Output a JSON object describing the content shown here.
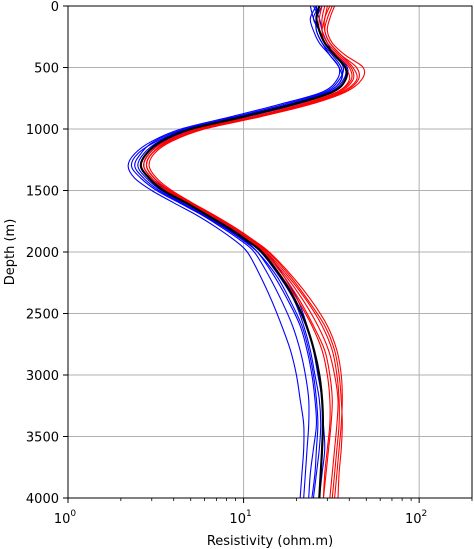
{
  "chart_data": {
    "type": "line",
    "xlabel": "Resistivity (ohm.m)",
    "ylabel": "Depth (m)",
    "x_scale": "log",
    "xlim": [
      1,
      200
    ],
    "ylim": [
      4000,
      0
    ],
    "y_inverted": true,
    "grid": true,
    "x_ticks": [
      {
        "value": 1,
        "base": "10",
        "exp": "0"
      },
      {
        "value": 10,
        "base": "10",
        "exp": "1"
      },
      {
        "value": 100,
        "base": "10",
        "exp": "2"
      }
    ],
    "y_ticks": [
      0,
      500,
      1000,
      1500,
      2000,
      2500,
      3000,
      3500,
      4000
    ],
    "colors": {
      "blue": "#0000ff",
      "red": "#ff0000",
      "black": "#000000",
      "grid": "#b0b0b0"
    },
    "depths": [
      0,
      100,
      200,
      300,
      400,
      500,
      600,
      700,
      800,
      900,
      1000,
      1100,
      1200,
      1300,
      1400,
      1500,
      1600,
      1700,
      1800,
      1900,
      2000,
      2200,
      2400,
      2600,
      2800,
      3000,
      3200,
      3400,
      3600,
      3800,
      4000
    ],
    "series": [
      {
        "color": "blue",
        "values": [
          26,
          24,
          25,
          27,
          31,
          35,
          34,
          28,
          16,
          8.5,
          4.4,
          3.0,
          2.4,
          2.2,
          2.4,
          3.0,
          4.0,
          5.4,
          7.0,
          8.8,
          10.5,
          12.5,
          14.5,
          16.5,
          18.5,
          20.0,
          21.0,
          22.0,
          22.0,
          21.5,
          21.0
        ]
      },
      {
        "color": "blue",
        "values": [
          24,
          25,
          27,
          29,
          33,
          37,
          35,
          29,
          17,
          9.0,
          4.7,
          3.2,
          2.5,
          2.3,
          2.6,
          3.2,
          4.3,
          5.8,
          7.5,
          9.5,
          11.5,
          14.0,
          16.5,
          19.0,
          21.0,
          22.5,
          23.5,
          23.5,
          23.0,
          22.5,
          22.0
        ]
      },
      {
        "color": "blue",
        "values": [
          28,
          26,
          26,
          28,
          32,
          36,
          36,
          30,
          18,
          9.5,
          4.8,
          3.3,
          2.7,
          2.5,
          2.8,
          3.4,
          4.5,
          6.0,
          7.8,
          10.0,
          12.0,
          15.0,
          18.0,
          21.0,
          23.0,
          24.5,
          25.5,
          26.0,
          25.0,
          24.0,
          23.5
        ]
      },
      {
        "color": "blue",
        "values": [
          25,
          27,
          28,
          30,
          33,
          38,
          37,
          31,
          19,
          10.0,
          5.0,
          3.4,
          2.8,
          2.6,
          2.9,
          3.5,
          4.7,
          6.2,
          8.0,
          10.2,
          12.5,
          16.0,
          19.5,
          22.0,
          24.0,
          25.5,
          27.0,
          27.5,
          27.0,
          26.0,
          25.0
        ]
      },
      {
        "color": "blue",
        "values": [
          27,
          25,
          27,
          29,
          34,
          39,
          38,
          32,
          20,
          10.5,
          5.2,
          3.5,
          2.9,
          2.7,
          3.0,
          3.7,
          4.9,
          6.5,
          8.4,
          10.8,
          13.5,
          17.0,
          20.5,
          23.0,
          25.0,
          26.5,
          28.0,
          28.5,
          29.0,
          28.0,
          27.0
        ]
      },
      {
        "color": "blue",
        "values": [
          26,
          26,
          26,
          28,
          31,
          35,
          36,
          30,
          18,
          9.2,
          4.6,
          3.1,
          2.6,
          2.4,
          2.7,
          3.3,
          4.4,
          5.9,
          7.7,
          9.8,
          12.0,
          15.5,
          18.5,
          21.5,
          23.5,
          25.0,
          26.0,
          26.5,
          26.0,
          25.5,
          24.5
        ]
      },
      {
        "color": "red",
        "values": [
          30,
          29,
          28,
          29,
          33,
          38,
          40,
          34,
          22,
          11.5,
          5.5,
          3.6,
          2.9,
          2.7,
          3.0,
          3.6,
          4.8,
          6.3,
          8.2,
          10.5,
          13.0,
          17.0,
          21.0,
          25.0,
          29.0,
          31.0,
          32.0,
          31.5,
          30.5,
          29.5,
          28.5
        ]
      },
      {
        "color": "red",
        "values": [
          32,
          30,
          29,
          31,
          36,
          44,
          45,
          37,
          23,
          12.0,
          5.8,
          3.8,
          3.0,
          2.8,
          3.1,
          3.8,
          5.0,
          6.6,
          8.6,
          11.0,
          13.5,
          18.0,
          23.0,
          28.0,
          32.0,
          34.0,
          35.0,
          35.0,
          34.0,
          33.0,
          32.0
        ]
      },
      {
        "color": "red",
        "values": [
          29,
          28,
          28,
          30,
          35,
          41,
          42,
          35,
          22,
          11.8,
          5.6,
          3.7,
          3.0,
          2.8,
          3.1,
          3.7,
          4.9,
          6.5,
          8.5,
          10.8,
          13.2,
          17.5,
          22.0,
          26.5,
          30.5,
          33.0,
          34.5,
          34.0,
          33.0,
          32.0,
          31.0
        ]
      },
      {
        "color": "red",
        "values": [
          33,
          31,
          30,
          32,
          38,
          48,
          47,
          38,
          24,
          12.5,
          6.0,
          3.9,
          3.1,
          2.9,
          3.2,
          3.9,
          5.1,
          6.8,
          8.9,
          11.3,
          14.0,
          19.0,
          24.5,
          30.0,
          34.0,
          36.0,
          36.5,
          36.0,
          35.0,
          34.0,
          33.0
        ]
      },
      {
        "color": "red",
        "values": [
          28,
          27,
          27,
          29,
          34,
          40,
          41,
          34,
          21,
          11.2,
          5.4,
          3.6,
          2.9,
          2.7,
          3.0,
          3.6,
          4.7,
          6.2,
          8.1,
          10.3,
          12.8,
          16.5,
          20.5,
          24.5,
          28.0,
          30.0,
          31.0,
          31.0,
          30.0,
          29.0,
          28.5
        ]
      },
      {
        "color": "red",
        "values": [
          31,
          29,
          29,
          31,
          36,
          42,
          44,
          36,
          23,
          12.2,
          5.9,
          3.8,
          3.0,
          2.8,
          3.1,
          3.8,
          5.0,
          6.7,
          8.7,
          11.1,
          13.8,
          18.5,
          23.5,
          29.0,
          33.0,
          35.0,
          36.0,
          36.5,
          36.0,
          35.0,
          34.5
        ]
      },
      {
        "color": "black",
        "values": [
          27,
          26,
          27,
          29,
          33,
          38,
          38,
          32,
          19,
          10.0,
          5.0,
          3.4,
          2.8,
          2.6,
          2.9,
          3.5,
          4.7,
          6.2,
          8.1,
          10.3,
          12.7,
          16.3,
          19.8,
          22.8,
          25.2,
          27.0,
          28.0,
          28.3,
          28.0,
          27.5,
          27.0
        ]
      }
    ]
  }
}
